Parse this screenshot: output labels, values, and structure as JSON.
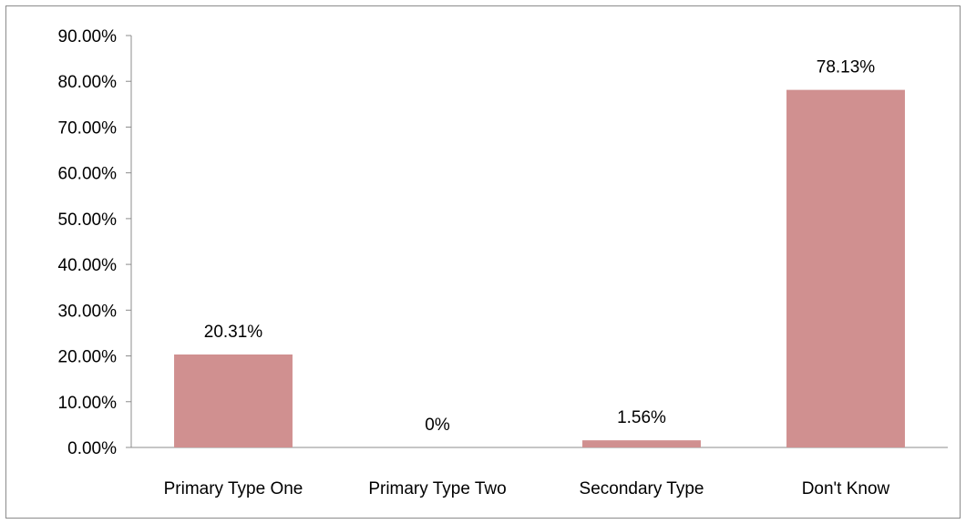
{
  "chart_data": {
    "type": "bar",
    "categories": [
      "Primary Type One",
      "Primary Type Two",
      "Secondary Type",
      "Don't Know"
    ],
    "values": [
      20.31,
      0,
      1.56,
      78.13
    ],
    "data_labels": [
      "20.31%",
      "0%",
      "1.56%",
      "78.13%"
    ],
    "y_tick_labels": [
      "0.00%",
      "10.00%",
      "20.00%",
      "30.00%",
      "40.00%",
      "50.00%",
      "60.00%",
      "70.00%",
      "80.00%",
      "90.00%"
    ],
    "ylim": [
      0,
      90
    ],
    "y_tick_step": 10,
    "grid": false,
    "bar_color": "#d09090",
    "axis_color": "#8c8c8c"
  }
}
